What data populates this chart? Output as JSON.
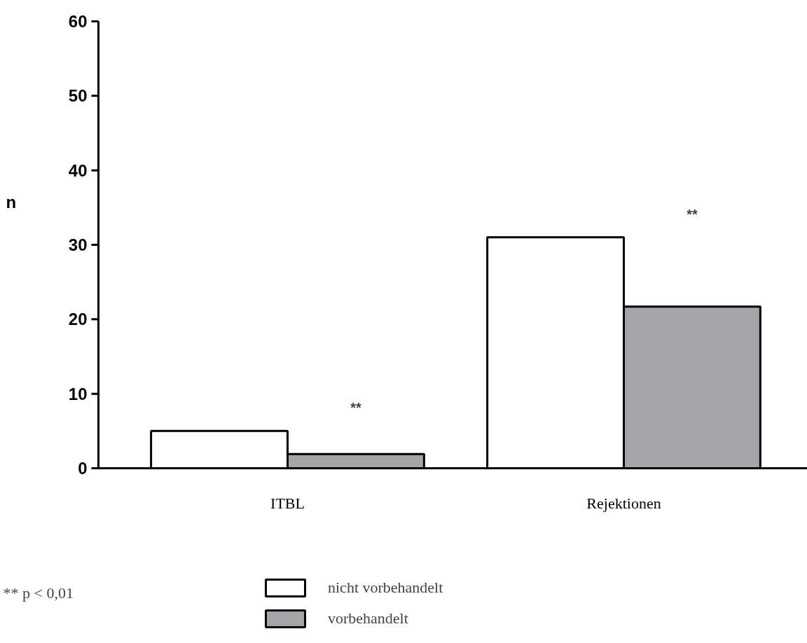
{
  "chart_data": {
    "type": "bar",
    "categories": [
      "ITBL",
      "Rejektionen"
    ],
    "ylabel": "n",
    "series": [
      {
        "name": "nicht vorbehandelt",
        "color": "#ffffff",
        "values": [
          5,
          31
        ]
      },
      {
        "name": "vorbehandelt",
        "color": "#a5a4a8",
        "values": [
          1.9,
          21.7
        ]
      }
    ],
    "ylim": [
      0,
      60
    ],
    "yticks": [
      0,
      10,
      20,
      30,
      40,
      50,
      60
    ],
    "grid": false,
    "legend": "bottom",
    "annotations": [
      "**",
      "**",
      "** p < 0,01"
    ]
  }
}
